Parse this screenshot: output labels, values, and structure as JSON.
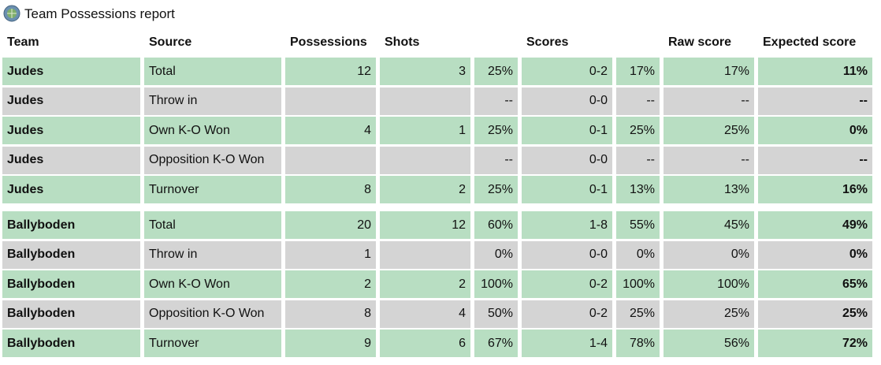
{
  "title": "Team Possessions report",
  "table": {
    "headers": [
      "Team",
      "Source",
      "Possessions",
      "Shots",
      "Scores",
      "Raw score",
      "Expected score"
    ],
    "groups": [
      {
        "rows": [
          [
            "Judes",
            "Total",
            "12",
            "3",
            "25%",
            "0-2",
            "17%",
            "17%",
            "11%"
          ],
          [
            "Judes",
            "Throw in",
            null,
            null,
            "--",
            "0-0",
            "--",
            "--",
            "--"
          ],
          [
            "Judes",
            "Own K-O Won",
            "4",
            "1",
            "25%",
            "0-1",
            "25%",
            "25%",
            "0%"
          ],
          [
            "Judes",
            "Opposition K-O Won",
            null,
            null,
            "--",
            "0-0",
            "--",
            "--",
            "--"
          ],
          [
            "Judes",
            "Turnover",
            "8",
            "2",
            "25%",
            "0-1",
            "13%",
            "13%",
            "16%"
          ]
        ]
      },
      {
        "rows": [
          [
            "Ballyboden",
            "Total",
            "20",
            "12",
            "60%",
            "1-8",
            "55%",
            "45%",
            "49%"
          ],
          [
            "Ballyboden",
            "Throw in",
            "1",
            null,
            "0%",
            "0-0",
            "0%",
            "0%",
            "0%"
          ],
          [
            "Ballyboden",
            "Own K-O Won",
            "2",
            "2",
            "100%",
            "0-2",
            "100%",
            "100%",
            "65%"
          ],
          [
            "Ballyboden",
            "Opposition K-O Won",
            "8",
            "4",
            "50%",
            "0-2",
            "25%",
            "25%",
            "25%"
          ],
          [
            "Ballyboden",
            "Turnover",
            "9",
            "6",
            "67%",
            "1-4",
            "78%",
            "56%",
            "72%"
          ]
        ]
      }
    ]
  }
}
